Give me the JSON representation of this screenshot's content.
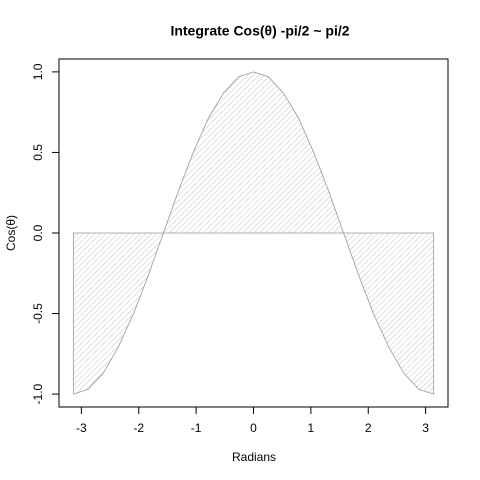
{
  "chart_data": {
    "type": "area",
    "title": "Integrate Cos(θ) -pi/2 ~ pi/2",
    "x_label": "Radians",
    "y_label": "Cos(θ)",
    "x": [
      -3.14,
      -2.88,
      -2.62,
      -2.36,
      -2.09,
      -1.83,
      -1.57,
      -1.31,
      -1.05,
      -0.79,
      -0.52,
      -0.26,
      0,
      0.26,
      0.52,
      0.79,
      1.05,
      1.31,
      1.57,
      1.83,
      2.09,
      2.36,
      2.62,
      2.88,
      3.14
    ],
    "values": [
      -1.0,
      -0.97,
      -0.87,
      -0.71,
      -0.5,
      -0.26,
      0.0,
      0.26,
      0.5,
      0.71,
      0.87,
      0.97,
      1.0,
      0.97,
      0.87,
      0.71,
      0.5,
      0.26,
      0.0,
      -0.26,
      -0.5,
      -0.71,
      -0.87,
      -0.97,
      -1.0
    ],
    "color": "#999999",
    "hatch": true,
    "xlim": [
      -3.39,
      3.39
    ],
    "xticks": [
      -3,
      -2,
      -1,
      0,
      1,
      2,
      3
    ],
    "ylim": [
      -1.08,
      1.08
    ],
    "yticks": [
      {
        "value": -1,
        "label": "-1.0"
      },
      {
        "value": -0.5,
        "label": "-0.5"
      },
      {
        "value": 0,
        "label": "0.0"
      },
      {
        "value": 0.5,
        "label": "0.5"
      },
      {
        "value": 1,
        "label": "1.0"
      }
    ]
  }
}
